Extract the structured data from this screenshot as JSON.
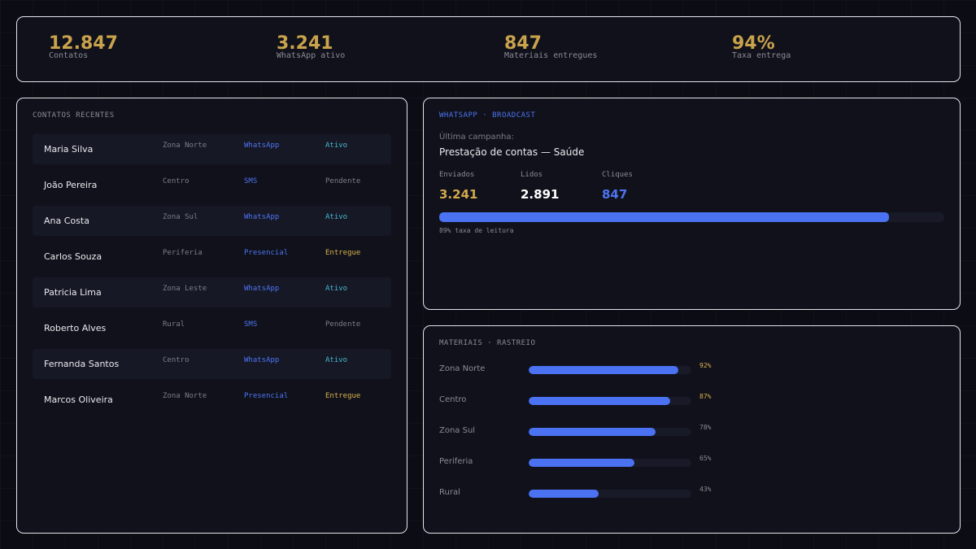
{
  "stats": [
    {
      "value": "12.847",
      "label": "Contatos"
    },
    {
      "value": "3.241",
      "label": "WhatsApp ativo"
    },
    {
      "value": "847",
      "label": "Materiais entregues"
    },
    {
      "value": "94%",
      "label": "Taxa entrega"
    }
  ],
  "contacts": {
    "title": "CONTATOS RECENTES",
    "rows": [
      {
        "name": "Maria Silva",
        "zone": "Zona Norte",
        "channel": "WhatsApp",
        "status": "Ativo"
      },
      {
        "name": "João Pereira",
        "zone": "Centro",
        "channel": "SMS",
        "status": "Pendente"
      },
      {
        "name": "Ana Costa",
        "zone": "Zona Sul",
        "channel": "WhatsApp",
        "status": "Ativo"
      },
      {
        "name": "Carlos Souza",
        "zone": "Periferia",
        "channel": "Presencial",
        "status": "Entregue"
      },
      {
        "name": "Patricia Lima",
        "zone": "Zona Leste",
        "channel": "WhatsApp",
        "status": "Ativo"
      },
      {
        "name": "Roberto Alves",
        "zone": "Rural",
        "channel": "SMS",
        "status": "Pendente"
      },
      {
        "name": "Fernanda Santos",
        "zone": "Centro",
        "channel": "WhatsApp",
        "status": "Ativo"
      },
      {
        "name": "Marcos Oliveira",
        "zone": "Zona Norte",
        "channel": "Presencial",
        "status": "Entregue"
      }
    ]
  },
  "broadcast": {
    "title": "WHATSAPP · BROADCAST",
    "last_label": "Última campanha:",
    "campaign": "Prestação de contas — Saúde",
    "metrics": [
      {
        "label": "Enviados",
        "value": "3.241",
        "color": "#d4a94c"
      },
      {
        "label": "Lidos",
        "value": "2.891",
        "color": "#ffffff"
      },
      {
        "label": "Cliques",
        "value": "847",
        "color": "#4d74f0"
      }
    ],
    "read_rate": 0.89,
    "caption": "89% taxa de leitura"
  },
  "materials": {
    "title": "MATERIAIS · RASTREIO",
    "rows": [
      {
        "zone": "Zona Norte",
        "pct": 92,
        "label": "92%",
        "color": "#d9b24a"
      },
      {
        "zone": "Centro",
        "pct": 87,
        "label": "87%",
        "color": "#d9b24a"
      },
      {
        "zone": "Zona Sul",
        "pct": 78,
        "label": "78%",
        "color": "#8a8b96"
      },
      {
        "zone": "Periferia",
        "pct": 65,
        "label": "65%",
        "color": "#8a8b96"
      },
      {
        "zone": "Rural",
        "pct": 43,
        "label": "43%",
        "color": "#8a8b96"
      }
    ]
  }
}
